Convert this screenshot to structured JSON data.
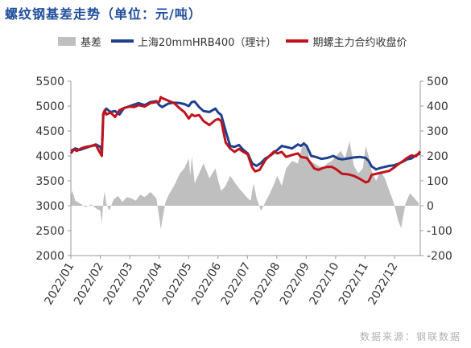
{
  "title": "螺纹钢基差走势（单位：元/吨）",
  "source": "数据来源：钢联数据",
  "colors": {
    "basis": "#bfbfbf",
    "spot": "#1f3f8f",
    "futures": "#c0141c"
  },
  "chart_data": {
    "type": "line",
    "legend": [
      "基差",
      "上海20mmHRB400（理计）",
      "期螺主力合约收盘价"
    ],
    "legend_position": "top",
    "grid": false,
    "x_tick_labels": [
      "2022/01",
      "2022/02",
      "2022/03",
      "2022/04",
      "2022/05",
      "2022/06",
      "2022/07",
      "2022/08",
      "2022/09",
      "2022/10",
      "2022/11",
      "2022/12"
    ],
    "left_axis": {
      "min": 2000,
      "max": 5500,
      "ticks": [
        "2000",
        "2500",
        "3000",
        "3500",
        "4000",
        "4500",
        "5000",
        "5500"
      ]
    },
    "right_axis": {
      "min": -200,
      "max": 500,
      "ticks": [
        "-200",
        "-100",
        "0",
        "100",
        "200",
        "300",
        "400",
        "500"
      ]
    },
    "x_domain": [
      1,
      12.85
    ],
    "series": [
      {
        "name": "基差",
        "axis": "right",
        "kind": "area",
        "x": [
          1.0,
          1.05,
          1.15,
          1.3,
          1.5,
          1.7,
          1.85,
          2.0,
          2.05,
          2.1,
          2.15,
          2.2,
          2.3,
          2.45,
          2.6,
          2.75,
          2.9,
          3.05,
          3.2,
          3.35,
          3.5,
          3.7,
          3.9,
          4.0,
          4.05,
          4.1,
          4.2,
          4.3,
          4.5,
          4.7,
          4.85,
          5.0,
          5.05,
          5.1,
          5.2,
          5.35,
          5.5,
          5.7,
          5.9,
          6.0,
          6.1,
          6.25,
          6.4,
          6.55,
          6.7,
          6.85,
          7.0,
          7.1,
          7.15,
          7.2,
          7.3,
          7.45,
          7.6,
          7.75,
          7.9,
          8.0,
          8.15,
          8.3,
          8.5,
          8.7,
          8.8,
          8.9,
          9.0,
          9.1,
          9.25,
          9.4,
          9.55,
          9.7,
          9.85,
          10.0,
          10.15,
          10.3,
          10.45,
          10.6,
          10.75,
          10.9,
          11.0,
          11.1,
          11.2,
          11.35,
          11.5,
          11.65,
          11.8,
          11.9,
          12.0,
          12.1,
          12.2,
          12.35,
          12.5,
          12.65,
          12.8
        ],
        "y": [
          40,
          60,
          20,
          10,
          -5,
          5,
          -10,
          -20,
          -70,
          20,
          60,
          10,
          -20,
          25,
          40,
          15,
          35,
          30,
          20,
          45,
          35,
          55,
          30,
          -50,
          -95,
          -60,
          10,
          40,
          80,
          130,
          150,
          190,
          120,
          200,
          90,
          130,
          170,
          110,
          150,
          100,
          60,
          80,
          120,
          95,
          70,
          50,
          30,
          20,
          60,
          90,
          30,
          -20,
          15,
          50,
          90,
          120,
          80,
          150,
          180,
          170,
          220,
          260,
          240,
          180,
          170,
          160,
          150,
          170,
          180,
          200,
          220,
          190,
          260,
          160,
          130,
          150,
          240,
          200,
          140,
          100,
          140,
          110,
          60,
          30,
          -10,
          -60,
          -90,
          10,
          50,
          30,
          10
        ]
      },
      {
        "name": "上海20mmHRB400（理计）",
        "axis": "left",
        "kind": "line",
        "x": [
          1.0,
          1.15,
          1.3,
          1.5,
          1.7,
          1.85,
          2.0,
          2.05,
          2.1,
          2.2,
          2.35,
          2.5,
          2.65,
          2.8,
          3.0,
          3.15,
          3.3,
          3.5,
          3.7,
          3.9,
          4.0,
          4.1,
          4.3,
          4.5,
          4.7,
          4.85,
          5.0,
          5.1,
          5.2,
          5.35,
          5.5,
          5.7,
          5.9,
          6.0,
          6.1,
          6.25,
          6.4,
          6.55,
          6.7,
          6.85,
          7.0,
          7.15,
          7.3,
          7.45,
          7.6,
          7.75,
          7.9,
          8.0,
          8.15,
          8.3,
          8.5,
          8.7,
          8.8,
          8.9,
          9.0,
          9.15,
          9.3,
          9.5,
          9.7,
          9.9,
          10.05,
          10.2,
          10.4,
          10.6,
          10.8,
          11.0,
          11.1,
          11.2,
          11.35,
          11.5,
          11.65,
          11.8,
          11.95,
          12.1,
          12.25,
          12.4,
          12.55,
          12.7,
          12.85
        ],
        "y": [
          4100,
          4150,
          4120,
          4160,
          4200,
          4230,
          4180,
          4100,
          4850,
          4950,
          4880,
          4900,
          4830,
          4960,
          5000,
          5030,
          5060,
          5020,
          5080,
          5100,
          5020,
          4980,
          5050,
          5070,
          5060,
          5040,
          5000,
          5080,
          5090,
          4980,
          4900,
          4880,
          4950,
          4870,
          4820,
          4500,
          4200,
          4180,
          4220,
          4120,
          4050,
          3850,
          3800,
          3860,
          3950,
          4000,
          4070,
          4120,
          4200,
          4180,
          4150,
          4230,
          4200,
          4250,
          4200,
          4000,
          3980,
          3940,
          3960,
          4000,
          3950,
          3930,
          3950,
          3970,
          3980,
          3960,
          3900,
          3790,
          3730,
          3760,
          3780,
          3800,
          3810,
          3840,
          3880,
          3930,
          3950,
          4010,
          4050
        ]
      },
      {
        "name": "期螺主力合约收盘价",
        "axis": "left",
        "kind": "line",
        "x": [
          1.0,
          1.1,
          1.2,
          1.35,
          1.5,
          1.7,
          1.85,
          2.0,
          2.05,
          2.1,
          2.15,
          2.2,
          2.35,
          2.5,
          2.65,
          2.8,
          3.0,
          3.15,
          3.3,
          3.5,
          3.7,
          3.9,
          4.0,
          4.05,
          4.1,
          4.3,
          4.5,
          4.7,
          4.85,
          5.0,
          5.1,
          5.2,
          5.35,
          5.5,
          5.7,
          5.9,
          6.0,
          6.1,
          6.25,
          6.4,
          6.55,
          6.7,
          6.85,
          7.0,
          7.15,
          7.25,
          7.4,
          7.6,
          7.75,
          7.9,
          8.0,
          8.15,
          8.3,
          8.5,
          8.7,
          8.8,
          8.9,
          9.0,
          9.1,
          9.25,
          9.4,
          9.55,
          9.7,
          9.85,
          10.0,
          10.2,
          10.4,
          10.6,
          10.8,
          11.0,
          11.1,
          11.2,
          11.35,
          11.5,
          11.65,
          11.8,
          11.95,
          12.1,
          12.25,
          12.4,
          12.55,
          12.7,
          12.85
        ],
        "y": [
          4050,
          4130,
          4100,
          4150,
          4180,
          4200,
          4220,
          4050,
          4000,
          4830,
          4920,
          4830,
          4870,
          4780,
          4920,
          4960,
          4990,
          4980,
          5020,
          4990,
          5060,
          5080,
          5090,
          5180,
          5160,
          5110,
          5060,
          4950,
          4880,
          4750,
          4830,
          4800,
          4820,
          4700,
          4620,
          4720,
          4740,
          4700,
          4270,
          4150,
          4080,
          4140,
          4080,
          4030,
          3770,
          3690,
          3720,
          3920,
          4010,
          4090,
          4050,
          4080,
          3980,
          4020,
          4050,
          3980,
          3970,
          3960,
          3880,
          3750,
          3720,
          3760,
          3780,
          3780,
          3730,
          3640,
          3630,
          3600,
          3540,
          3470,
          3490,
          3620,
          3640,
          3660,
          3680,
          3700,
          3760,
          3830,
          3890,
          3960,
          4010,
          3990,
          4090
        ]
      }
    ]
  }
}
